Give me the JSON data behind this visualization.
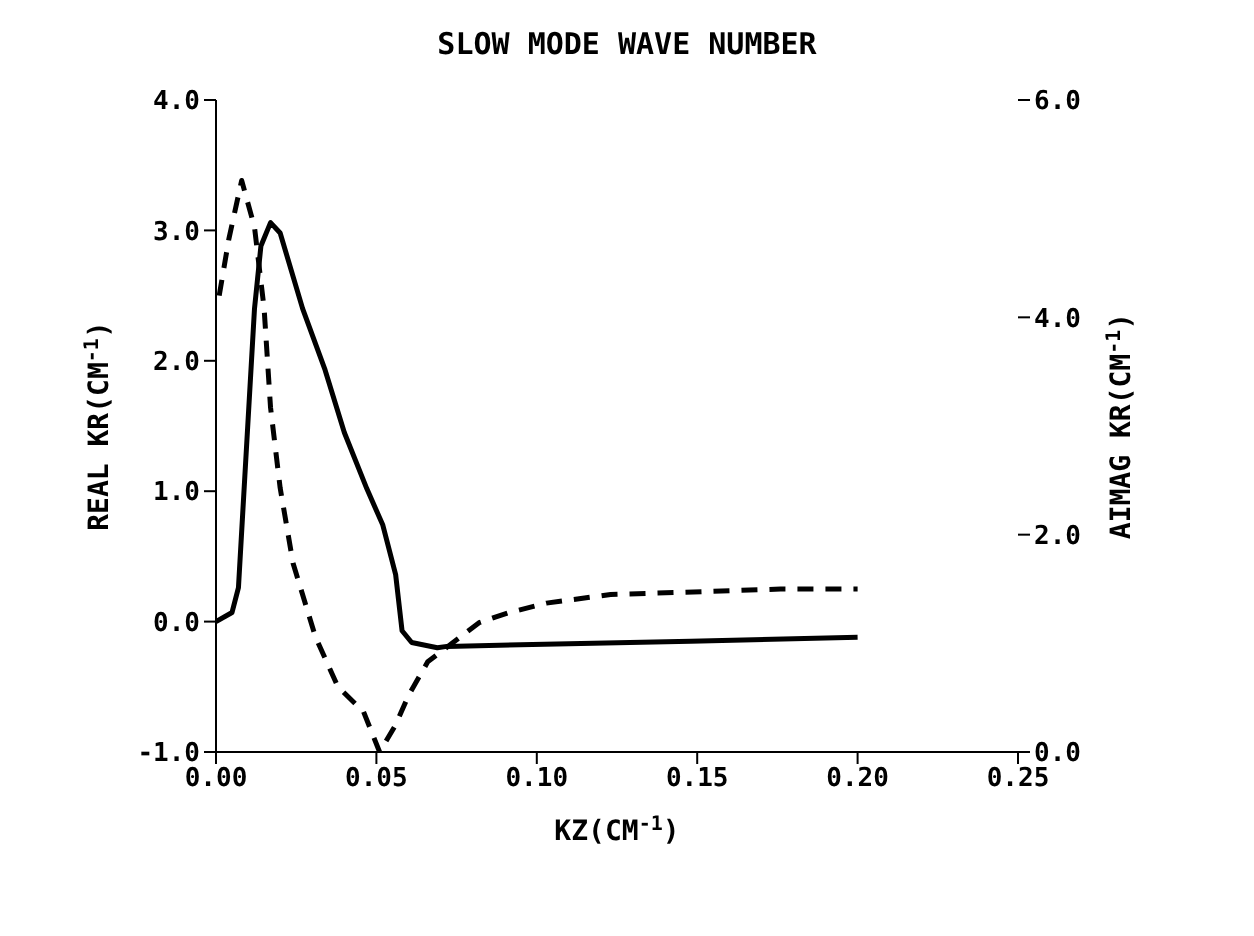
{
  "chart_data": {
    "type": "line",
    "title": "SLOW MODE WAVE NUMBER",
    "xlabel": "KZ(CM$^{-1}$)",
    "ylabel": "REAL KR(CM$^{-1}$)",
    "y2label": "AIMAG KR(CM$^{-1}$)",
    "xlim": [
      0,
      0.25
    ],
    "xticks": [
      {
        "value": 0,
        "label": "0.00"
      },
      {
        "value": 0.05,
        "label": "0.05"
      },
      {
        "value": 0.1,
        "label": "0.10"
      },
      {
        "value": 0.15,
        "label": "0.15"
      },
      {
        "value": 0.2,
        "label": "0.20"
      },
      {
        "value": 0.25,
        "label": "0.25"
      }
    ],
    "ylim": [
      -1,
      4
    ],
    "yticks": [
      {
        "value": -1,
        "label": "-1.0"
      },
      {
        "value": 0,
        "label": "0.0"
      },
      {
        "value": 1,
        "label": "1.0"
      },
      {
        "value": 2,
        "label": "2.0"
      },
      {
        "value": 3,
        "label": "3.0"
      },
      {
        "value": 4,
        "label": "4.0"
      }
    ],
    "y2lim": [
      0,
      6
    ],
    "y2ticks": [
      {
        "value": 0,
        "label": "0.0"
      },
      {
        "value": 2,
        "label": "2.0"
      },
      {
        "value": 4,
        "label": "4.0"
      },
      {
        "value": 6,
        "label": "6.0"
      }
    ],
    "grid": false,
    "legend": false,
    "marker": "none",
    "series": [
      {
        "color": "#000000",
        "line_style": "solid",
        "x": [
          0,
          0.005,
          0.007,
          0.009,
          0.012,
          0.014,
          0.017,
          0.02,
          0.027,
          0.034,
          0.04,
          0.047,
          0.052,
          0.056,
          0.058,
          0.061,
          0.069,
          0.072,
          0.11,
          0.148,
          0.2
        ],
        "values": [
          0,
          0.07,
          0.26,
          1.12,
          2.4,
          2.88,
          3.06,
          2.98,
          2.4,
          1.93,
          1.45,
          1.02,
          0.74,
          0.36,
          -0.07,
          -0.16,
          -0.2,
          -0.19,
          -0.17,
          -0.15,
          -0.12
        ]
      },
      {
        "color": "#000000",
        "line_style": "dashed",
        "axis": "y2",
        "x": [
          0.001,
          0.004,
          0.008,
          0.012,
          0.015,
          0.017,
          0.02,
          0.024,
          0.031,
          0.038,
          0.046,
          0.051,
          0.056,
          0.06,
          0.066,
          0.082,
          0.091,
          0.103,
          0.123,
          0.146,
          0.176,
          0.2
        ],
        "values": [
          4.2,
          4.72,
          5.26,
          4.83,
          4.08,
          3.17,
          2.43,
          1.74,
          1.06,
          0.6,
          0.37,
          0,
          0.25,
          0.52,
          0.83,
          1.19,
          1.28,
          1.37,
          1.45,
          1.47,
          1.5,
          1.5
        ]
      }
    ]
  }
}
